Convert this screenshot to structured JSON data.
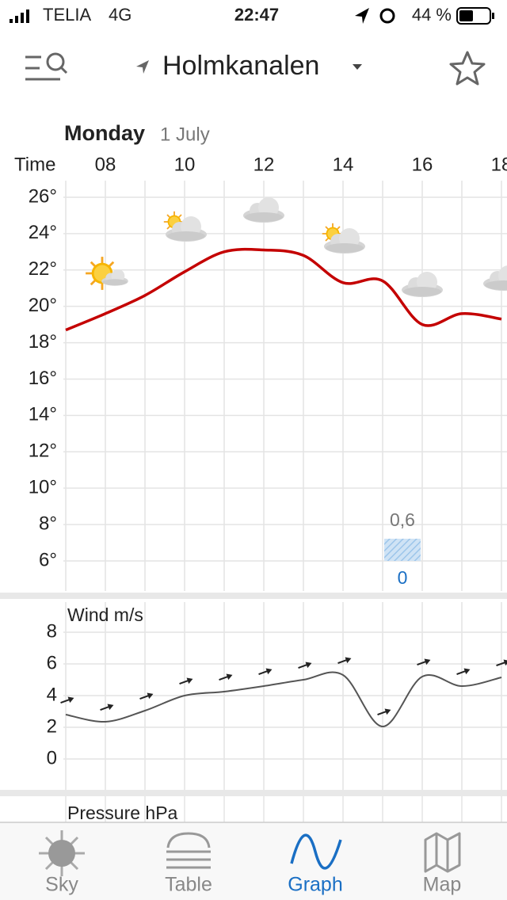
{
  "status_bar": {
    "carrier": "TELIA",
    "network": "4G",
    "time": "22:47",
    "battery": "44 %"
  },
  "header": {
    "location": "Holmkanalen"
  },
  "date": {
    "weekday": "Monday",
    "day": "1 July"
  },
  "chart_data": [
    {
      "type": "line",
      "xlabel": "Time",
      "color": "#c40000",
      "x": [
        7,
        8,
        9,
        10,
        11,
        12,
        13,
        14,
        15,
        16,
        17,
        18
      ],
      "values": [
        18.7,
        19.6,
        20.6,
        21.9,
        23.0,
        23.1,
        22.8,
        21.3,
        21.4,
        19.0,
        19.6,
        19.3
      ],
      "xlim": [
        6.94,
        18.14
      ],
      "xticks": [
        {
          "value": 8,
          "label": "08"
        },
        {
          "value": 10,
          "label": "10"
        },
        {
          "value": 12,
          "label": "12"
        },
        {
          "value": 14,
          "label": "14"
        },
        {
          "value": 16,
          "label": "16"
        },
        {
          "value": 18,
          "label": "18"
        }
      ],
      "ylim": [
        4.5,
        26.9
      ],
      "yticks": [
        {
          "value": 26,
          "label": "26°"
        },
        {
          "value": 24,
          "label": "24°"
        },
        {
          "value": 22,
          "label": "22°"
        },
        {
          "value": 20,
          "label": "20°"
        },
        {
          "value": 18,
          "label": "18°"
        },
        {
          "value": 16,
          "label": "16°"
        },
        {
          "value": 14,
          "label": "14°"
        },
        {
          "value": 12,
          "label": "12°"
        },
        {
          "value": 10,
          "label": "10°"
        },
        {
          "value": 8,
          "label": "8°"
        },
        {
          "value": 6,
          "label": "6°"
        }
      ],
      "grid": true,
      "precipitation": {
        "x": [
          15,
          16
        ],
        "values": [
          0.6
        ],
        "value_labels": [
          "0,6"
        ],
        "probability": [
          0
        ]
      }
    },
    {
      "type": "line",
      "title": "Wind m/s",
      "color": "#555555",
      "x": [
        7,
        8,
        9,
        10,
        11,
        12,
        13,
        14,
        15,
        16,
        17,
        18
      ],
      "values": [
        2.8,
        2.35,
        3.05,
        4.0,
        4.25,
        4.6,
        5.0,
        5.3,
        2.05,
        5.2,
        4.6,
        5.15
      ],
      "xlim": [
        6.94,
        18.14
      ],
      "ylim": [
        -1.5,
        8.5
      ],
      "yticks": [
        8,
        6,
        4,
        2,
        0
      ],
      "grid": true
    }
  ],
  "pressure": {
    "title": "Pressure hPa"
  },
  "tab_bar": {
    "tabs": [
      "Sky",
      "Table",
      "Graph",
      "Map"
    ],
    "active": "Graph"
  }
}
